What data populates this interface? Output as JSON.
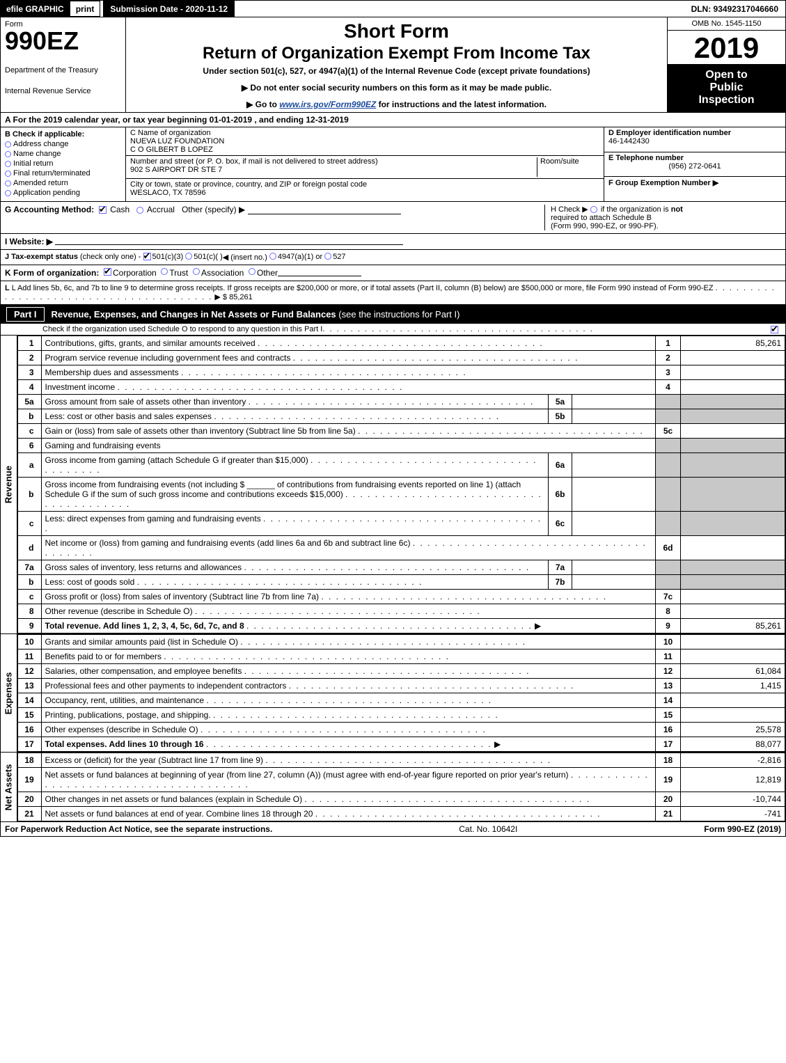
{
  "top_strip": {
    "efile": "efile GRAPHIC",
    "print": "print",
    "submission": "Submission Date - 2020-11-12",
    "dln": "DLN: 93492317046660"
  },
  "header": {
    "form_label": "Form",
    "form_no": "990EZ",
    "dept1": "Department of the Treasury",
    "dept2": "Internal Revenue Service",
    "short_form": "Short Form",
    "return_title": "Return of Organization Exempt From Income Tax",
    "under_section": "Under section 501(c), 527, or 4947(a)(1) of the Internal Revenue Code (except private foundations)",
    "no_ssn": "▶ Do not enter social security numbers on this form as it may be made public.",
    "goto": "▶ Go to www.irs.gov/Form990EZ for instructions and the latest information.",
    "goto_url_text": "www.irs.gov/Form990EZ",
    "omb": "OMB No. 1545-1150",
    "year": "2019",
    "open1": "Open to",
    "open2": "Public",
    "open3": "Inspection"
  },
  "line_a": "A For the 2019 calendar year, or tax year beginning 01-01-2019 , and ending 12-31-2019",
  "col_b": {
    "title": "B  Check if applicable:",
    "items": [
      "Address change",
      "Name change",
      "Initial return",
      "Final return/terminated",
      "Amended return",
      "Application pending"
    ]
  },
  "col_c": {
    "c_title": "C Name of organization",
    "name1": "NUEVA LUZ FOUNDATION",
    "name2": "C O GILBERT B LOPEZ",
    "addr_label": "Number and street (or P. O. box, if mail is not delivered to street address)",
    "room_label": "Room/suite",
    "addr": "902 S AIRPORT DR STE 7",
    "city_label": "City or town, state or province, country, and ZIP or foreign postal code",
    "city": "WESLACO, TX  78596"
  },
  "col_d": {
    "d_title": "D Employer identification number",
    "ein": "46-1442430",
    "e_title": "E Telephone number",
    "phone": "(956) 272-0641",
    "f_title": "F Group Exemption Number  ▶"
  },
  "g_row": {
    "g_label": "G Accounting Method:",
    "cash": "Cash",
    "accrual": "Accrual",
    "other": "Other (specify) ▶",
    "h_text1": "H  Check ▶",
    "h_text2": "if the organization is",
    "h_not": "not",
    "h_text3": "required to attach Schedule B",
    "h_text4": "(Form 990, 990-EZ, or 990-PF)."
  },
  "i_row": {
    "label": "I Website: ▶"
  },
  "j_row": {
    "label": "J Tax-exempt status",
    "sub": "(check only one) -",
    "opt1": "501(c)(3)",
    "opt2": "501(c)(  )",
    "opt2_insert": "◀ (insert no.)",
    "opt3": "4947(a)(1) or",
    "opt4": "527"
  },
  "k_row": {
    "label": "K Form of organization:",
    "opts": [
      "Corporation",
      "Trust",
      "Association",
      "Other"
    ]
  },
  "l_row": {
    "text": "L Add lines 5b, 6c, and 7b to line 9 to determine gross receipts. If gross receipts are $200,000 or more, or if total assets (Part II, column (B) below) are $500,000 or more, file Form 990 instead of Form 990-EZ",
    "arrow": "▶",
    "amount": "$ 85,261"
  },
  "part1": {
    "label": "Part I",
    "title": "Revenue, Expenses, and Changes in Net Assets or Fund Balances",
    "title_paren": "(see the instructions for Part I)",
    "sub": "Check if the organization used Schedule O to respond to any question in this Part I"
  },
  "side_labels": {
    "revenue": "Revenue",
    "expenses": "Expenses",
    "netassets": "Net Assets"
  },
  "revenue_lines": [
    {
      "no": "1",
      "desc": "Contributions, gifts, grants, and similar amounts received",
      "mini_no": "",
      "mini_val": "",
      "lineno": "1",
      "amount": "85,261"
    },
    {
      "no": "2",
      "desc": "Program service revenue including government fees and contracts",
      "mini_no": "",
      "mini_val": "",
      "lineno": "2",
      "amount": ""
    },
    {
      "no": "3",
      "desc": "Membership dues and assessments",
      "mini_no": "",
      "mini_val": "",
      "lineno": "3",
      "amount": ""
    },
    {
      "no": "4",
      "desc": "Investment income",
      "mini_no": "",
      "mini_val": "",
      "lineno": "4",
      "amount": ""
    },
    {
      "no": "5a",
      "desc": "Gross amount from sale of assets other than inventory",
      "mini_no": "5a",
      "mini_val": "",
      "lineno": "",
      "amount": "",
      "gray_right": true
    },
    {
      "no": "b",
      "desc": "Less: cost or other basis and sales expenses",
      "mini_no": "5b",
      "mini_val": "",
      "lineno": "",
      "amount": "",
      "gray_right": true
    },
    {
      "no": "c",
      "desc": "Gain or (loss) from sale of assets other than inventory (Subtract line 5b from line 5a)",
      "mini_no": "",
      "mini_val": "",
      "lineno": "5c",
      "amount": ""
    },
    {
      "no": "6",
      "desc": "Gaming and fundraising events",
      "mini_no": "",
      "mini_val": "",
      "lineno": "",
      "amount": "",
      "gray_right": true,
      "no_lineno": true
    },
    {
      "no": "a",
      "desc": "Gross income from gaming (attach Schedule G if greater than $15,000)",
      "mini_no": "6a",
      "mini_val": "",
      "lineno": "",
      "amount": "",
      "gray_right": true
    },
    {
      "no": "b",
      "desc": "Gross income from fundraising events (not including $ ______ of contributions from fundraising events reported on line 1) (attach Schedule G if the sum of such gross income and contributions exceeds $15,000)",
      "mini_no": "6b",
      "mini_val": "",
      "lineno": "",
      "amount": "",
      "gray_right": true
    },
    {
      "no": "c",
      "desc": "Less: direct expenses from gaming and fundraising events",
      "mini_no": "6c",
      "mini_val": "",
      "lineno": "",
      "amount": "",
      "gray_right": true
    },
    {
      "no": "d",
      "desc": "Net income or (loss) from gaming and fundraising events (add lines 6a and 6b and subtract line 6c)",
      "mini_no": "",
      "mini_val": "",
      "lineno": "6d",
      "amount": ""
    },
    {
      "no": "7a",
      "desc": "Gross sales of inventory, less returns and allowances",
      "mini_no": "7a",
      "mini_val": "",
      "lineno": "",
      "amount": "",
      "gray_right": true
    },
    {
      "no": "b",
      "desc": "Less: cost of goods sold",
      "mini_no": "7b",
      "mini_val": "",
      "lineno": "",
      "amount": "",
      "gray_right": true
    },
    {
      "no": "c",
      "desc": "Gross profit or (loss) from sales of inventory (Subtract line 7b from line 7a)",
      "mini_no": "",
      "mini_val": "",
      "lineno": "7c",
      "amount": ""
    },
    {
      "no": "8",
      "desc": "Other revenue (describe in Schedule O)",
      "mini_no": "",
      "mini_val": "",
      "lineno": "8",
      "amount": ""
    },
    {
      "no": "9",
      "desc": "Total revenue. Add lines 1, 2, 3, 4, 5c, 6d, 7c, and 8",
      "mini_no": "",
      "mini_val": "",
      "lineno": "9",
      "amount": "85,261",
      "bold": true,
      "arrow": true
    }
  ],
  "expense_lines": [
    {
      "no": "10",
      "desc": "Grants and similar amounts paid (list in Schedule O)",
      "lineno": "10",
      "amount": ""
    },
    {
      "no": "11",
      "desc": "Benefits paid to or for members",
      "lineno": "11",
      "amount": ""
    },
    {
      "no": "12",
      "desc": "Salaries, other compensation, and employee benefits",
      "lineno": "12",
      "amount": "61,084"
    },
    {
      "no": "13",
      "desc": "Professional fees and other payments to independent contractors",
      "lineno": "13",
      "amount": "1,415"
    },
    {
      "no": "14",
      "desc": "Occupancy, rent, utilities, and maintenance",
      "lineno": "14",
      "amount": ""
    },
    {
      "no": "15",
      "desc": "Printing, publications, postage, and shipping.",
      "lineno": "15",
      "amount": ""
    },
    {
      "no": "16",
      "desc": "Other expenses (describe in Schedule O)",
      "lineno": "16",
      "amount": "25,578"
    },
    {
      "no": "17",
      "desc": "Total expenses. Add lines 10 through 16",
      "lineno": "17",
      "amount": "88,077",
      "bold": true,
      "arrow": true
    }
  ],
  "netasset_lines": [
    {
      "no": "18",
      "desc": "Excess or (deficit) for the year (Subtract line 17 from line 9)",
      "lineno": "18",
      "amount": "-2,816"
    },
    {
      "no": "19",
      "desc": "Net assets or fund balances at beginning of year (from line 27, column (A)) (must agree with end-of-year figure reported on prior year's return)",
      "lineno": "19",
      "amount": "12,819"
    },
    {
      "no": "20",
      "desc": "Other changes in net assets or fund balances (explain in Schedule O)",
      "lineno": "20",
      "amount": "-10,744"
    },
    {
      "no": "21",
      "desc": "Net assets or fund balances at end of year. Combine lines 18 through 20",
      "lineno": "21",
      "amount": "-741"
    }
  ],
  "footer": {
    "left": "For Paperwork Reduction Act Notice, see the separate instructions.",
    "mid": "Cat. No. 10642I",
    "right": "Form 990-EZ (2019)"
  },
  "colors": {
    "black": "#000000",
    "white": "#ffffff",
    "gray_cell": "#c8c8c8",
    "checkbox_border": "#6a6aff",
    "link": "#1a4a9c"
  }
}
